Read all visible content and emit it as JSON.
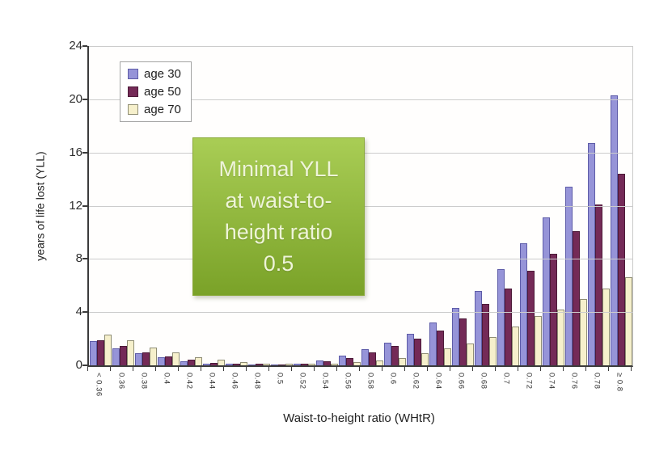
{
  "chart_data": {
    "type": "bar",
    "title": "",
    "xlabel": "Waist-to-height ratio (WHtR)",
    "ylabel": "years of life lost (YLL)",
    "ylim": [
      0,
      24
    ],
    "yticks": [
      0,
      4,
      8,
      12,
      16,
      20,
      24
    ],
    "grid": true,
    "legend_position": "top-left-inside",
    "categories": [
      "< 0.36",
      "0.36",
      "0.38",
      "0.4",
      "0.42",
      "0.44",
      "0.46",
      "0.48",
      "0.5",
      "0.52",
      "0.54",
      "0.56",
      "0.58",
      "0.6",
      "0.62",
      "0.64",
      "0.66",
      "0.68",
      "0.7",
      "0.72",
      "0.74",
      "0.76",
      "0.78",
      "≥ 0.8"
    ],
    "series": [
      {
        "name": "age 30",
        "color": "#9694d8",
        "border_color": "#5e5ca8",
        "values": [
          1.8,
          1.3,
          0.9,
          0.6,
          0.3,
          0.15,
          0.1,
          0.05,
          0.05,
          0.15,
          0.35,
          0.7,
          1.2,
          1.7,
          2.4,
          3.2,
          4.3,
          5.6,
          7.2,
          9.2,
          11.1,
          13.4,
          16.7,
          20.3
        ]
      },
      {
        "name": "age 50",
        "color": "#742a57",
        "border_color": "#4c1a38",
        "values": [
          1.9,
          1.45,
          1.0,
          0.65,
          0.4,
          0.2,
          0.15,
          0.1,
          0.05,
          0.15,
          0.3,
          0.55,
          1.0,
          1.45,
          2.0,
          2.6,
          3.5,
          4.6,
          5.8,
          7.1,
          8.4,
          10.1,
          12.1,
          14.4
        ]
      },
      {
        "name": "age 70",
        "color": "#f6f0cc",
        "border_color": "#8f8d74",
        "values": [
          2.3,
          1.9,
          1.35,
          1.0,
          0.6,
          0.4,
          0.25,
          0.15,
          0.1,
          0.1,
          0.15,
          0.25,
          0.35,
          0.55,
          0.9,
          1.3,
          1.65,
          2.1,
          2.9,
          3.7,
          4.2,
          5.0,
          5.8,
          6.6
        ]
      }
    ]
  },
  "annotation": {
    "lines": [
      "Minimal YLL",
      "at waist-to-",
      "height ratio",
      "0.5"
    ],
    "bg_top": "#a9cd55",
    "bg_bottom": "#7aa228",
    "text_color": "#eef4d8"
  },
  "axis": {
    "line_color": "#3b3b3b",
    "grid_color": "#cccccc"
  }
}
